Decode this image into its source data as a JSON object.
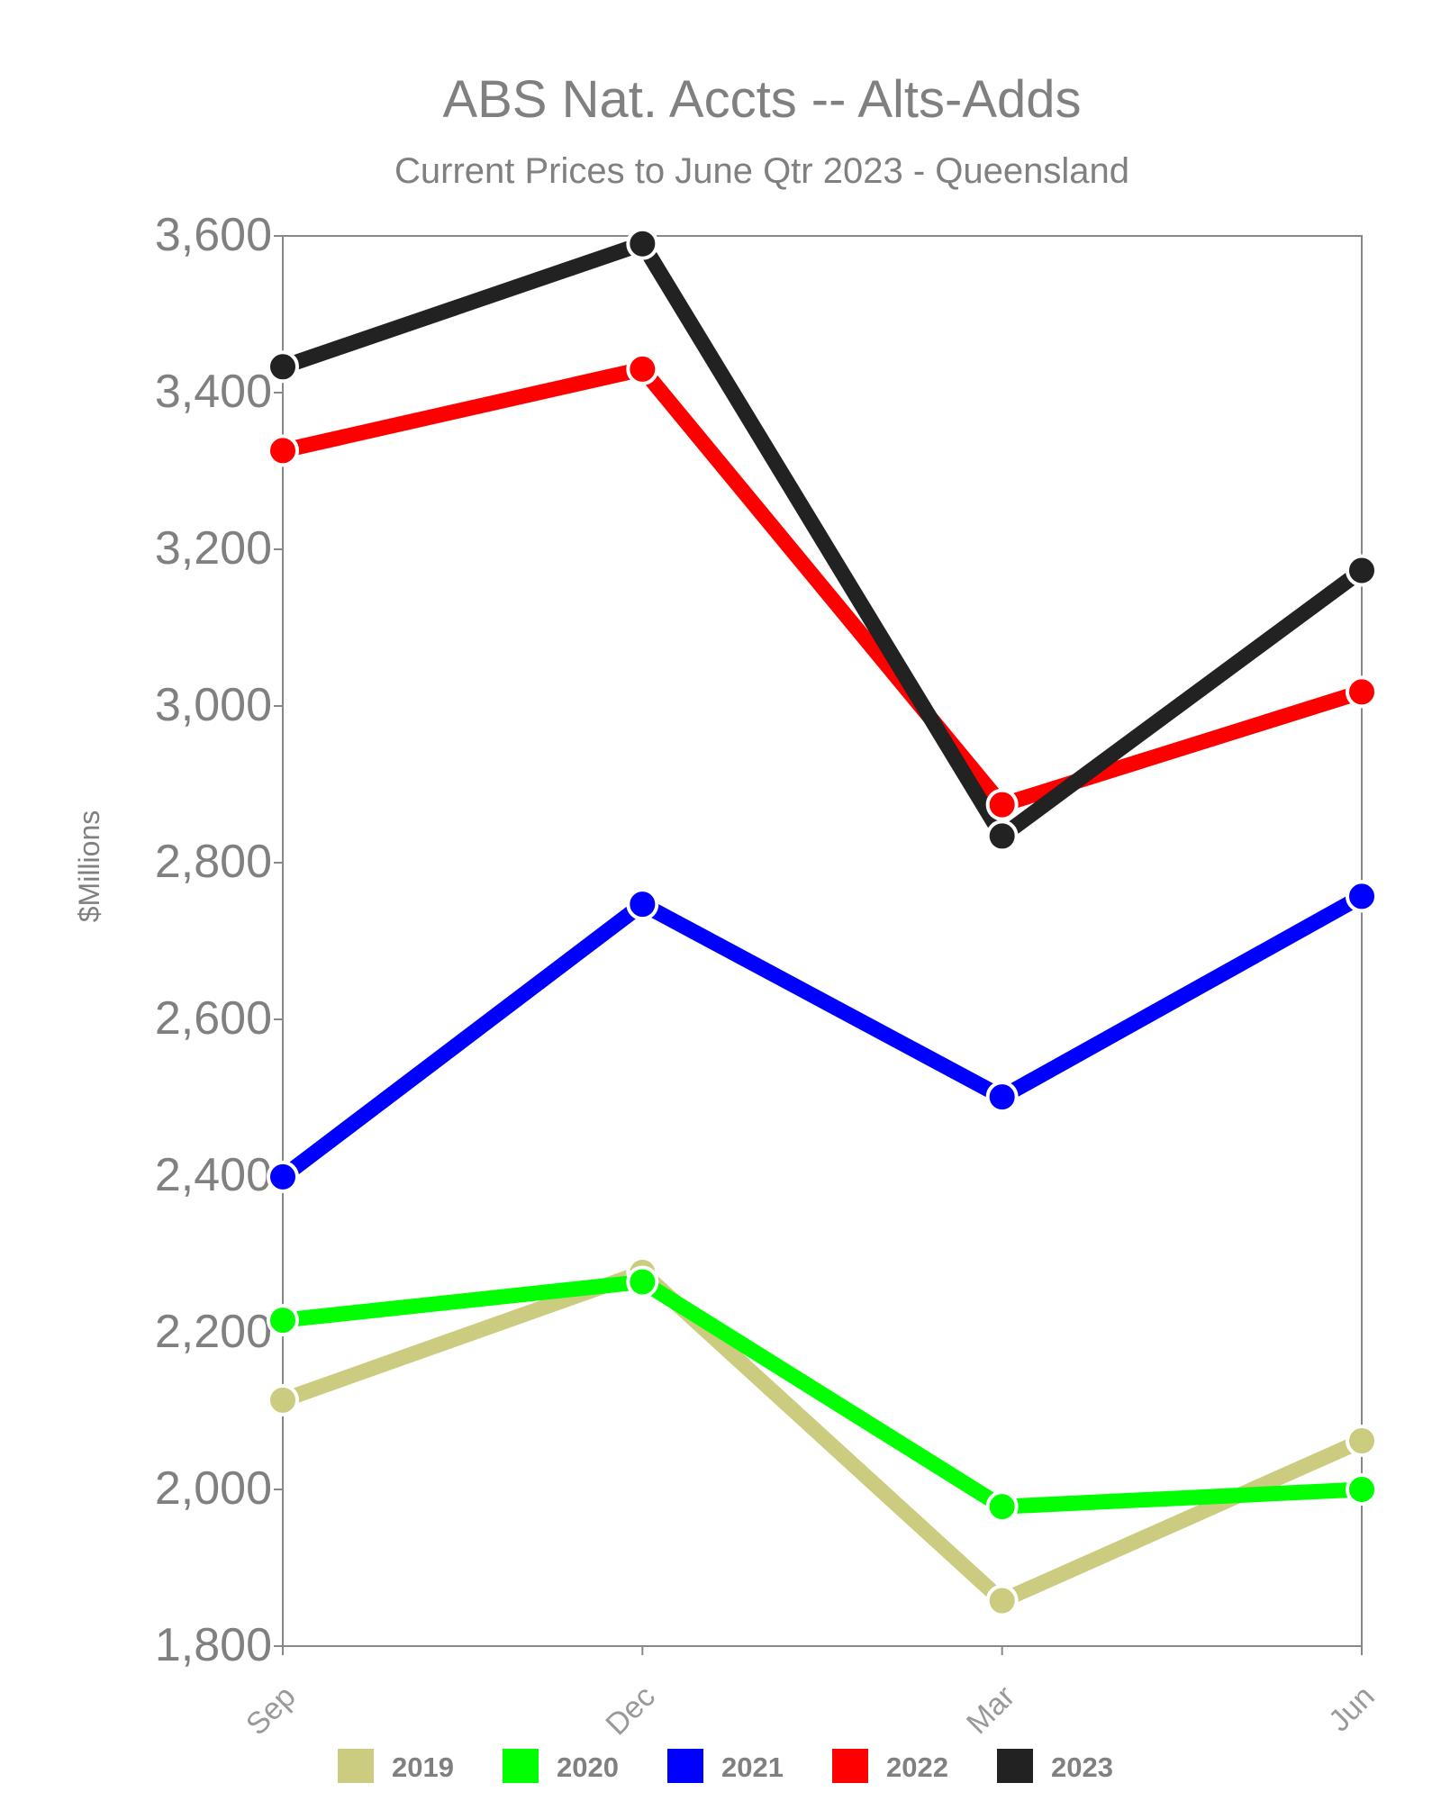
{
  "chart_data": {
    "type": "line",
    "title": "ABS Nat. Accts -- Alts-Adds",
    "subtitle": "Current Prices to June Qtr 2023 - Queensland",
    "xlabel": "",
    "ylabel": "$Millions",
    "categories": [
      "Sep",
      "Dec",
      "Mar",
      "Jun"
    ],
    "ylim": [
      1800,
      3600
    ],
    "yticks": [
      1800,
      2000,
      2200,
      2400,
      2600,
      2800,
      3000,
      3200,
      3400,
      3600
    ],
    "ytick_labels": [
      "1,800",
      "2,000",
      "2,200",
      "2,400",
      "2,600",
      "2,800",
      "3,000",
      "3,200",
      "3,400",
      "3,600"
    ],
    "grid": false,
    "legend_position": "bottom",
    "series": [
      {
        "name": "2019",
        "color": "#cccc80",
        "values": [
          2114,
          2277,
          1858,
          2062
        ]
      },
      {
        "name": "2020",
        "color": "#00ff00",
        "values": [
          2216,
          2265,
          1978,
          2000
        ]
      },
      {
        "name": "2021",
        "color": "#0000ff",
        "values": [
          2399,
          2747,
          2501,
          2757
        ]
      },
      {
        "name": "2022",
        "color": "#ff0000",
        "values": [
          3326,
          3430,
          2874,
          3018
        ]
      },
      {
        "name": "2023",
        "color": "#222222",
        "values": [
          3433,
          3590,
          2834,
          3173
        ]
      }
    ]
  }
}
